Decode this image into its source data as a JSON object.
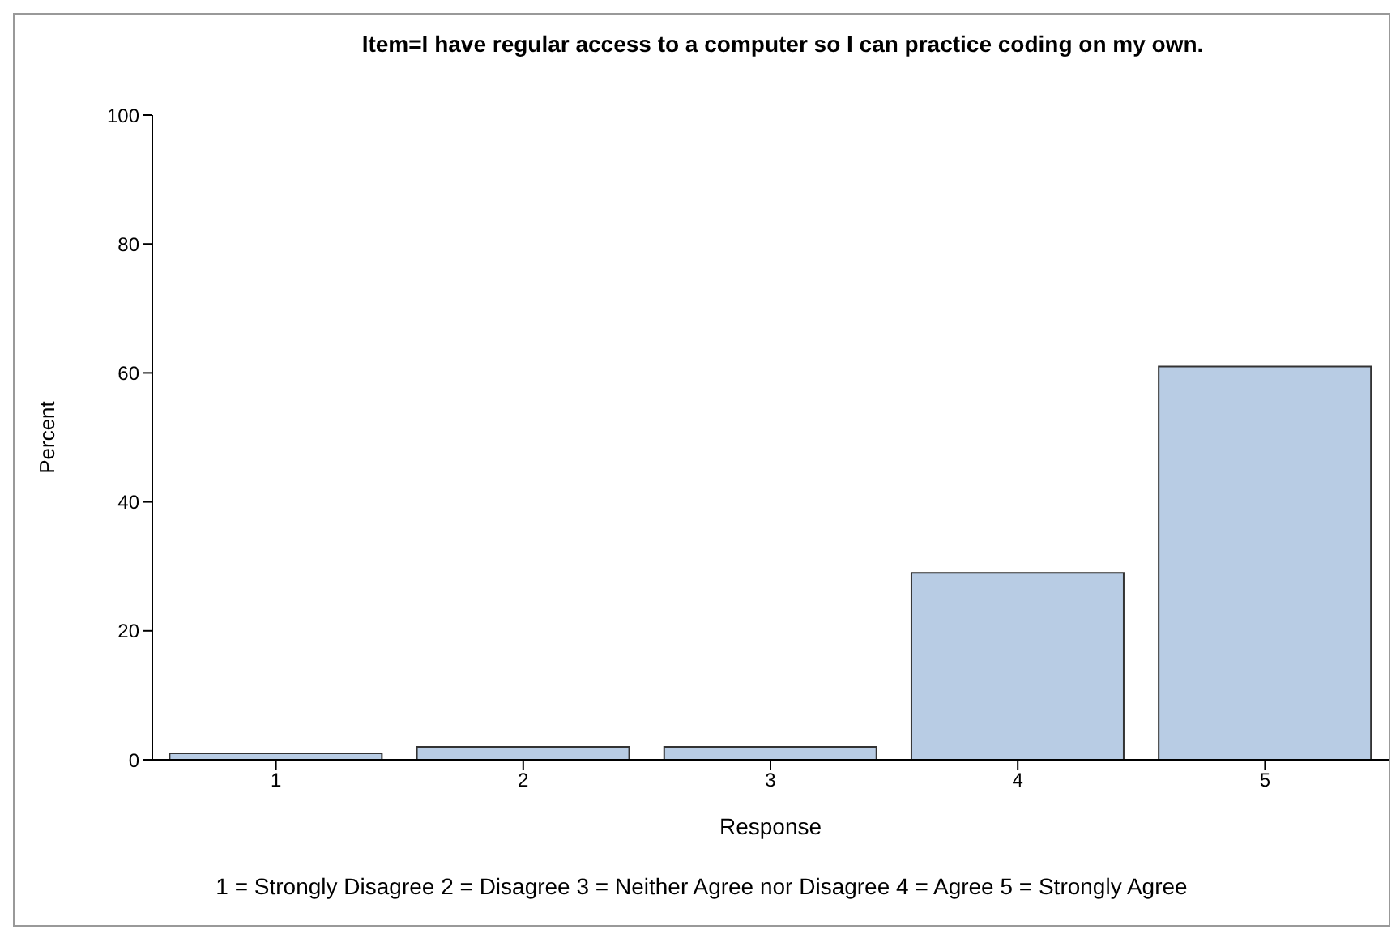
{
  "chart_data": {
    "type": "bar",
    "title": "Item=I have regular access to a computer so I can practice coding on my own.",
    "xlabel": "Response",
    "ylabel": "Percent",
    "categories": [
      "1",
      "2",
      "3",
      "4",
      "5"
    ],
    "values": [
      1,
      2,
      2,
      29,
      61
    ],
    "color": "#b8cce4",
    "ylim": [
      0,
      100
    ],
    "yticks": [
      0,
      20,
      40,
      60,
      80,
      100
    ],
    "annotations": [
      "1 = Strongly Disagree 2 = Disagree 3 = Neither Agree nor Disagree 4 = Agree 5 = Strongly Agree"
    ]
  }
}
